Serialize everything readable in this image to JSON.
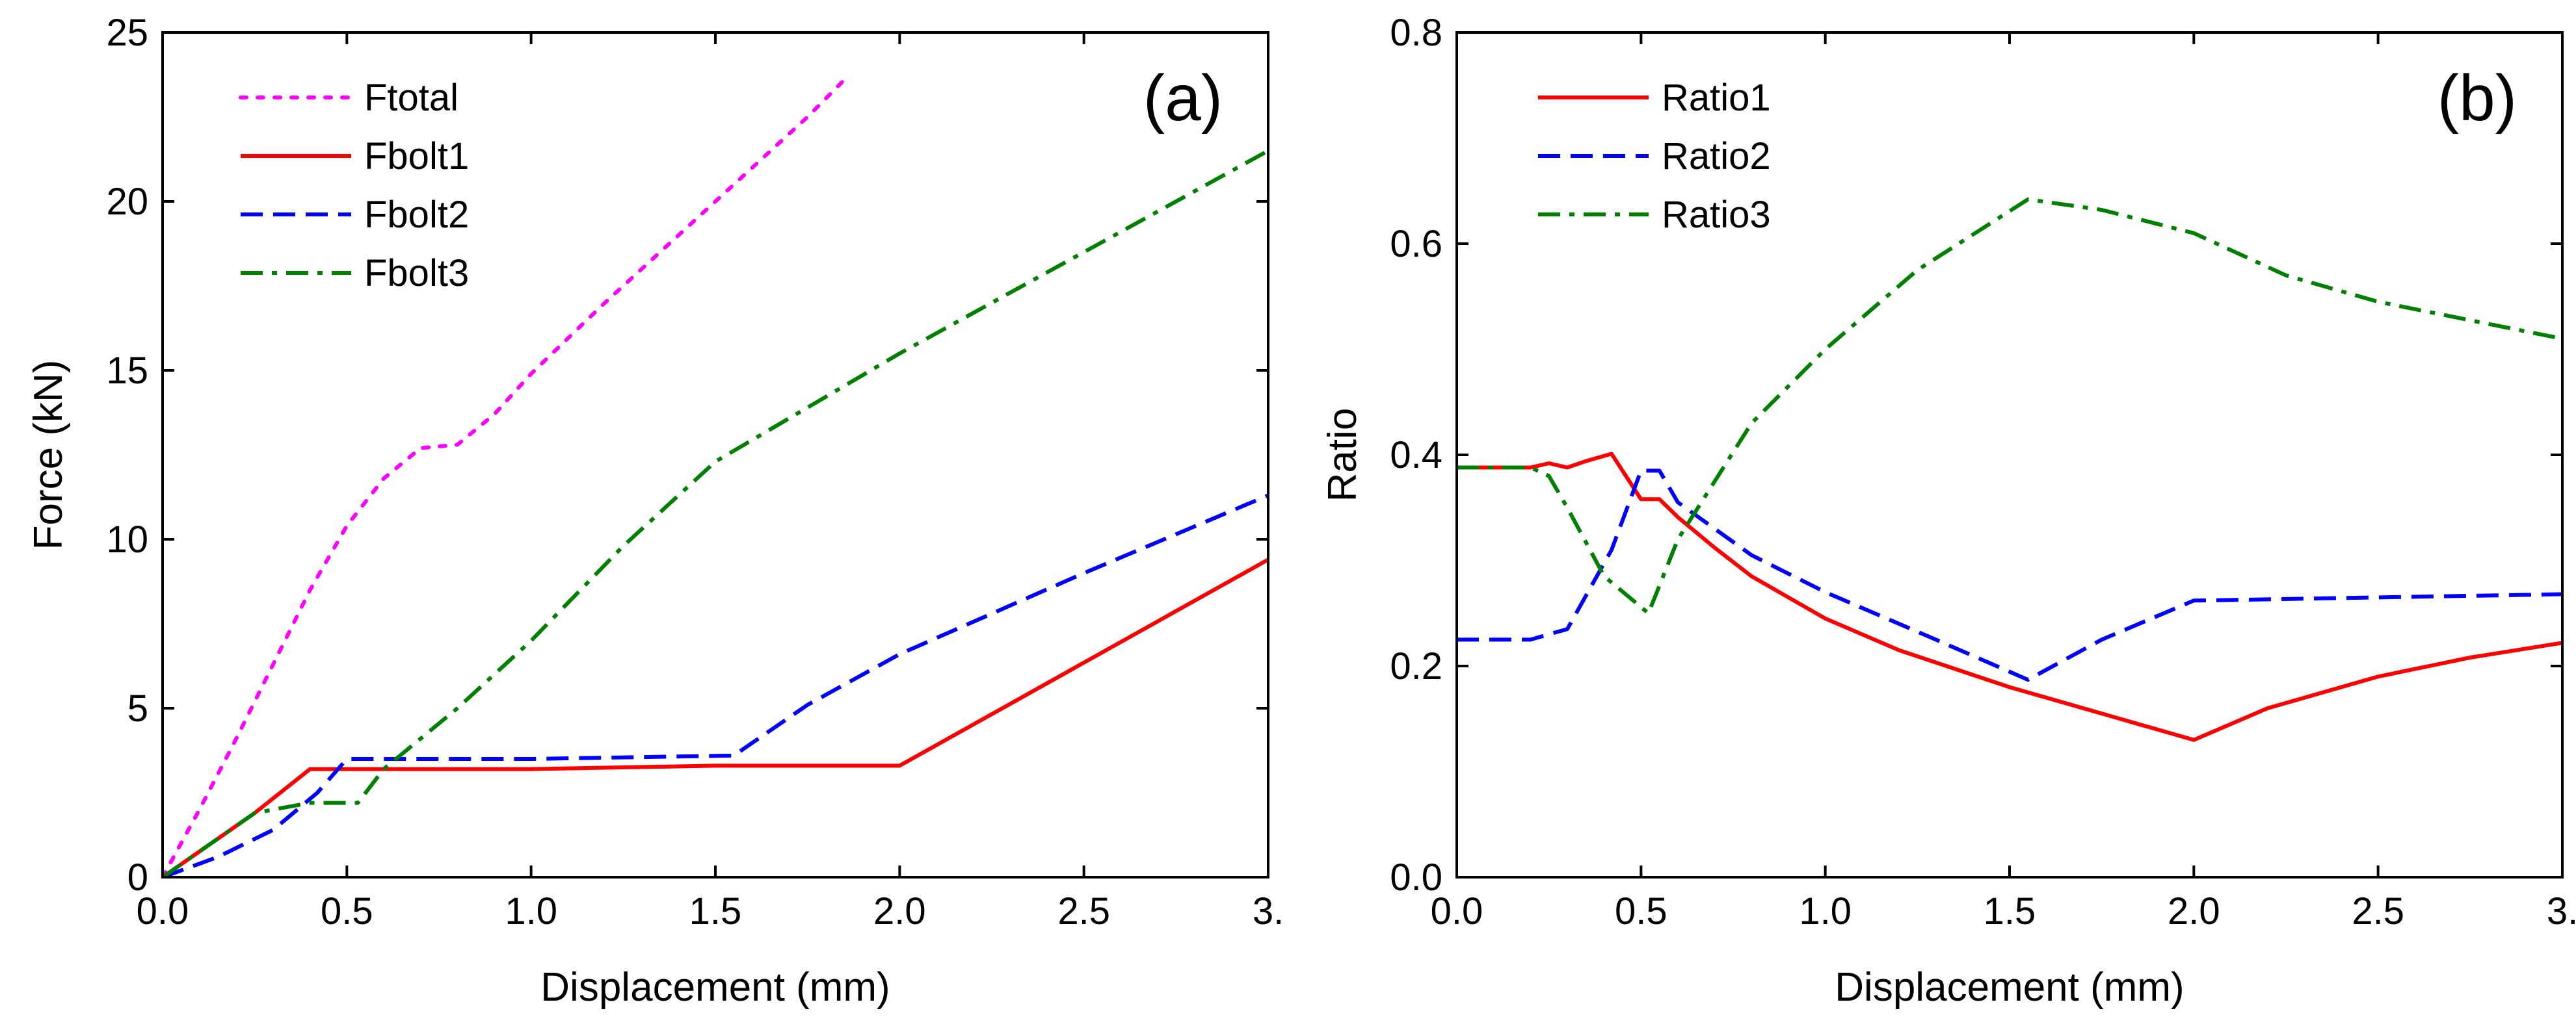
{
  "chart_data": [
    {
      "id": "a",
      "type": "line",
      "panel_label": "(a)",
      "title": "",
      "xlabel": "Displacement (mm)",
      "ylabel": "Force (kN)",
      "xlim": [
        0,
        3.0
      ],
      "ylim": [
        0,
        25
      ],
      "xticks": [
        0,
        0.5,
        1.0,
        1.5,
        2.0,
        2.5,
        3.0
      ],
      "xtick_labels": [
        "0.0",
        "0.5",
        "1.0",
        "1.5",
        "2.0",
        "2.5",
        "3."
      ],
      "yticks": [
        0,
        5,
        10,
        15,
        20,
        25
      ],
      "ytick_labels": [
        "0",
        "5",
        "10",
        "15",
        "20",
        "25"
      ],
      "grid": false,
      "legend_position": "top-left",
      "series": [
        {
          "name": "Ftotal",
          "color": "#ff00ff",
          "dash": "dotted",
          "x": [
            0,
            0.1,
            0.2,
            0.3,
            0.4,
            0.5,
            0.6,
            0.7,
            0.8,
            0.9,
            1.0,
            1.2,
            1.4,
            1.6,
            1.75,
            1.85
          ],
          "y": [
            0,
            2.0,
            4.1,
            6.3,
            8.5,
            10.4,
            11.8,
            12.7,
            12.8,
            13.7,
            14.9,
            17.0,
            19.0,
            21.0,
            22.5,
            23.6
          ]
        },
        {
          "name": "Fbolt1",
          "color": "#ff0000",
          "dash": "solid",
          "x": [
            0,
            0.25,
            0.4,
            0.7,
            1.0,
            1.5,
            1.7,
            2.0,
            3.0
          ],
          "y": [
            0,
            1.9,
            3.2,
            3.2,
            3.2,
            3.3,
            3.3,
            3.3,
            9.4
          ]
        },
        {
          "name": "Fbolt2",
          "color": "#0000ff",
          "dash": "dashed",
          "x": [
            0,
            0.15,
            0.3,
            0.42,
            0.5,
            1.0,
            1.55,
            1.75,
            2.0,
            2.5,
            3.0
          ],
          "y": [
            0,
            0.6,
            1.4,
            2.5,
            3.5,
            3.5,
            3.6,
            5.1,
            6.6,
            9.0,
            11.3
          ]
        },
        {
          "name": "Fbolt3",
          "color": "#008000",
          "dash": "dashdot",
          "x": [
            0,
            0.25,
            0.4,
            0.53,
            0.6,
            0.8,
            1.0,
            1.25,
            1.5,
            2.0,
            2.5,
            3.0
          ],
          "y": [
            0,
            1.9,
            2.2,
            2.2,
            3.2,
            5.0,
            7.0,
            9.8,
            12.3,
            15.5,
            18.5,
            21.5
          ]
        }
      ]
    },
    {
      "id": "b",
      "type": "line",
      "panel_label": "(b)",
      "title": "",
      "xlabel": "Displacement (mm)",
      "ylabel": "Ratio",
      "xlim": [
        0,
        3.0
      ],
      "ylim": [
        0,
        0.8
      ],
      "xticks": [
        0,
        0.5,
        1.0,
        1.5,
        2.0,
        2.5,
        3.0
      ],
      "xtick_labels": [
        "0.0",
        "0.5",
        "1.0",
        "1.5",
        "2.0",
        "2.5",
        "3."
      ],
      "yticks": [
        0,
        0.2,
        0.4,
        0.6,
        0.8
      ],
      "ytick_labels": [
        "0.0",
        "0.2",
        "0.4",
        "0.6",
        "0.8"
      ],
      "grid": false,
      "legend_position": "top-left",
      "series": [
        {
          "name": "Ratio1",
          "color": "#ff0000",
          "dash": "solid",
          "x": [
            0,
            0.1,
            0.2,
            0.25,
            0.3,
            0.35,
            0.42,
            0.5,
            0.55,
            0.6,
            0.7,
            0.8,
            1.0,
            1.2,
            1.5,
            1.75,
            2.0,
            2.2,
            2.5,
            2.75,
            3.0
          ],
          "y": [
            0.388,
            0.388,
            0.388,
            0.392,
            0.388,
            0.394,
            0.401,
            0.358,
            0.358,
            0.341,
            0.312,
            0.285,
            0.245,
            0.215,
            0.18,
            0.155,
            0.13,
            0.16,
            0.19,
            0.208,
            0.222
          ]
        },
        {
          "name": "Ratio2",
          "color": "#0000ff",
          "dash": "dashed",
          "x": [
            0,
            0.2,
            0.3,
            0.42,
            0.5,
            0.55,
            0.6,
            0.8,
            1.0,
            1.3,
            1.55,
            1.75,
            2.0,
            2.5,
            3.0
          ],
          "y": [
            0.225,
            0.225,
            0.235,
            0.31,
            0.385,
            0.385,
            0.355,
            0.305,
            0.27,
            0.225,
            0.187,
            0.225,
            0.262,
            0.265,
            0.268
          ]
        },
        {
          "name": "Ratio3",
          "color": "#008000",
          "dash": "dashdot",
          "x": [
            0,
            0.2,
            0.25,
            0.3,
            0.4,
            0.52,
            0.6,
            0.8,
            1.0,
            1.25,
            1.55,
            1.75,
            2.0,
            2.25,
            2.5,
            3.0
          ],
          "y": [
            0.388,
            0.388,
            0.38,
            0.35,
            0.285,
            0.25,
            0.32,
            0.43,
            0.5,
            0.575,
            0.642,
            0.632,
            0.61,
            0.57,
            0.545,
            0.51
          ]
        }
      ]
    }
  ]
}
